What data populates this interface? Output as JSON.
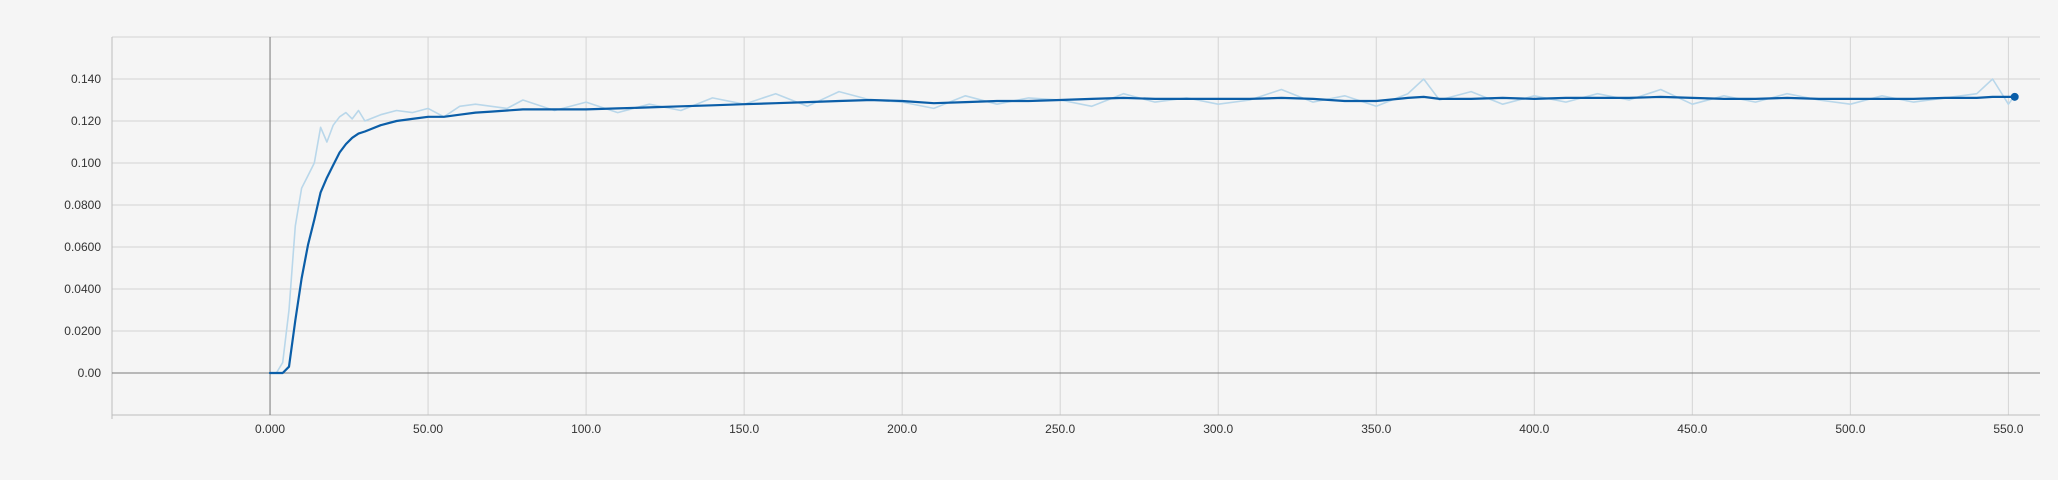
{
  "chart_data": {
    "type": "line",
    "title": "",
    "xlabel": "",
    "ylabel": "",
    "xlim": [
      -50,
      560
    ],
    "ylim": [
      -0.02,
      0.16
    ],
    "grid": true,
    "x_ticks": [
      0,
      50,
      100,
      150,
      200,
      250,
      300,
      350,
      400,
      450,
      500,
      550
    ],
    "x_tick_labels": [
      "0.000",
      "50.00",
      "100.0",
      "150.0",
      "200.0",
      "250.0",
      "300.0",
      "350.0",
      "400.0",
      "450.0",
      "500.0",
      "550.0"
    ],
    "y_ticks": [
      0,
      0.02,
      0.04,
      0.06,
      0.08,
      0.1,
      0.12,
      0.14
    ],
    "y_tick_labels": [
      "0.00",
      "0.0200",
      "0.0400",
      "0.0600",
      "0.0800",
      "0.100",
      "0.120",
      "0.140"
    ],
    "colors": {
      "raw": "#b9d7ea",
      "smoothed": "#0b5ea8",
      "grid": "#d4d4d4",
      "axis": "#7a7a7a",
      "background": "#f5f5f5"
    },
    "series": [
      {
        "style": "raw",
        "x": [
          0,
          2,
          4,
          6,
          8,
          10,
          12,
          14,
          16,
          18,
          20,
          22,
          24,
          26,
          28,
          30,
          35,
          40,
          45,
          50,
          55,
          60,
          65,
          70,
          75,
          80,
          90,
          100,
          110,
          120,
          130,
          140,
          150,
          160,
          170,
          180,
          190,
          200,
          210,
          220,
          230,
          240,
          250,
          260,
          270,
          280,
          290,
          300,
          310,
          320,
          330,
          340,
          350,
          360,
          365,
          370,
          380,
          390,
          400,
          410,
          420,
          430,
          440,
          450,
          460,
          470,
          480,
          490,
          500,
          510,
          520,
          530,
          540,
          545,
          550,
          552
        ],
        "y": [
          0,
          0,
          0.005,
          0.03,
          0.07,
          0.088,
          0.094,
          0.1,
          0.117,
          0.11,
          0.118,
          0.122,
          0.124,
          0.121,
          0.125,
          0.12,
          0.123,
          0.125,
          0.124,
          0.126,
          0.122,
          0.127,
          0.128,
          0.127,
          0.126,
          0.13,
          0.125,
          0.129,
          0.124,
          0.128,
          0.125,
          0.131,
          0.128,
          0.133,
          0.127,
          0.134,
          0.13,
          0.129,
          0.126,
          0.132,
          0.128,
          0.131,
          0.13,
          0.127,
          0.133,
          0.129,
          0.131,
          0.128,
          0.13,
          0.135,
          0.129,
          0.132,
          0.127,
          0.133,
          0.14,
          0.13,
          0.134,
          0.128,
          0.132,
          0.129,
          0.133,
          0.13,
          0.135,
          0.128,
          0.132,
          0.129,
          0.133,
          0.13,
          0.128,
          0.132,
          0.129,
          0.131,
          0.133,
          0.14,
          0.128,
          0.132
        ]
      },
      {
        "style": "smoothed",
        "x": [
          0,
          2,
          4,
          6,
          8,
          10,
          12,
          14,
          16,
          18,
          20,
          22,
          24,
          26,
          28,
          30,
          35,
          40,
          45,
          50,
          55,
          60,
          65,
          70,
          75,
          80,
          90,
          100,
          110,
          120,
          130,
          140,
          150,
          160,
          170,
          180,
          190,
          200,
          210,
          220,
          230,
          240,
          250,
          260,
          270,
          280,
          290,
          300,
          310,
          320,
          330,
          340,
          350,
          360,
          365,
          370,
          380,
          390,
          400,
          410,
          420,
          430,
          440,
          450,
          460,
          470,
          480,
          490,
          500,
          510,
          520,
          530,
          540,
          545,
          550,
          552
        ],
        "y": [
          0,
          0,
          0,
          0.003,
          0.025,
          0.045,
          0.061,
          0.073,
          0.086,
          0.093,
          0.099,
          0.105,
          0.109,
          0.112,
          0.114,
          0.115,
          0.118,
          0.12,
          0.121,
          0.122,
          0.122,
          0.123,
          0.124,
          0.1245,
          0.125,
          0.1255,
          0.1255,
          0.1255,
          0.126,
          0.1265,
          0.127,
          0.1275,
          0.128,
          0.1285,
          0.129,
          0.1295,
          0.13,
          0.1295,
          0.1285,
          0.129,
          0.1295,
          0.1295,
          0.13,
          0.1305,
          0.131,
          0.1305,
          0.1305,
          0.1305,
          0.1305,
          0.131,
          0.1305,
          0.1295,
          0.1295,
          0.131,
          0.1315,
          0.1305,
          0.1305,
          0.131,
          0.1305,
          0.131,
          0.131,
          0.131,
          0.1315,
          0.131,
          0.1305,
          0.1305,
          0.131,
          0.1305,
          0.1305,
          0.1305,
          0.1305,
          0.131,
          0.131,
          0.1315,
          0.1315,
          0.1315
        ]
      }
    ]
  }
}
